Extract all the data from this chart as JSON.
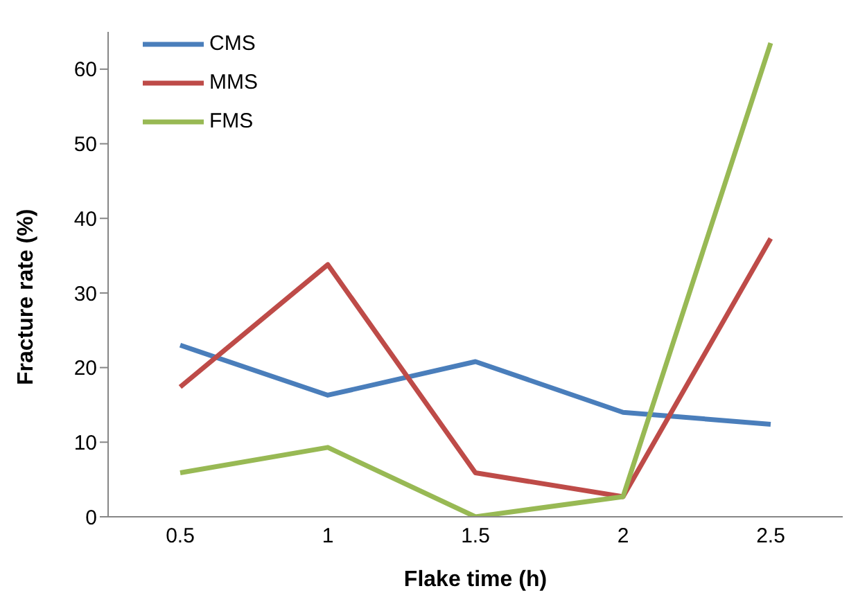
{
  "chart_data": {
    "type": "line",
    "xlabel": "Flake time (h)",
    "ylabel": "Fracture rate (%)",
    "categories": [
      "0.5",
      "1",
      "1.5",
      "2",
      "2.5"
    ],
    "series": [
      {
        "name": "CMS",
        "color": "#4a7ebb",
        "values": [
          23.0,
          16.3,
          20.8,
          14.0,
          12.4
        ]
      },
      {
        "name": "MMS",
        "color": "#be4b48",
        "values": [
          17.4,
          33.8,
          5.9,
          2.7,
          37.3
        ]
      },
      {
        "name": "FMS",
        "color": "#98b954",
        "values": [
          5.9,
          9.3,
          0,
          2.7,
          63.5
        ]
      }
    ],
    "ylim": [
      0,
      65
    ],
    "yticks": [
      0,
      10,
      20,
      30,
      40,
      50,
      60
    ],
    "grid": false,
    "legend": "top left",
    "marker": "none",
    "line_style": "solid"
  }
}
